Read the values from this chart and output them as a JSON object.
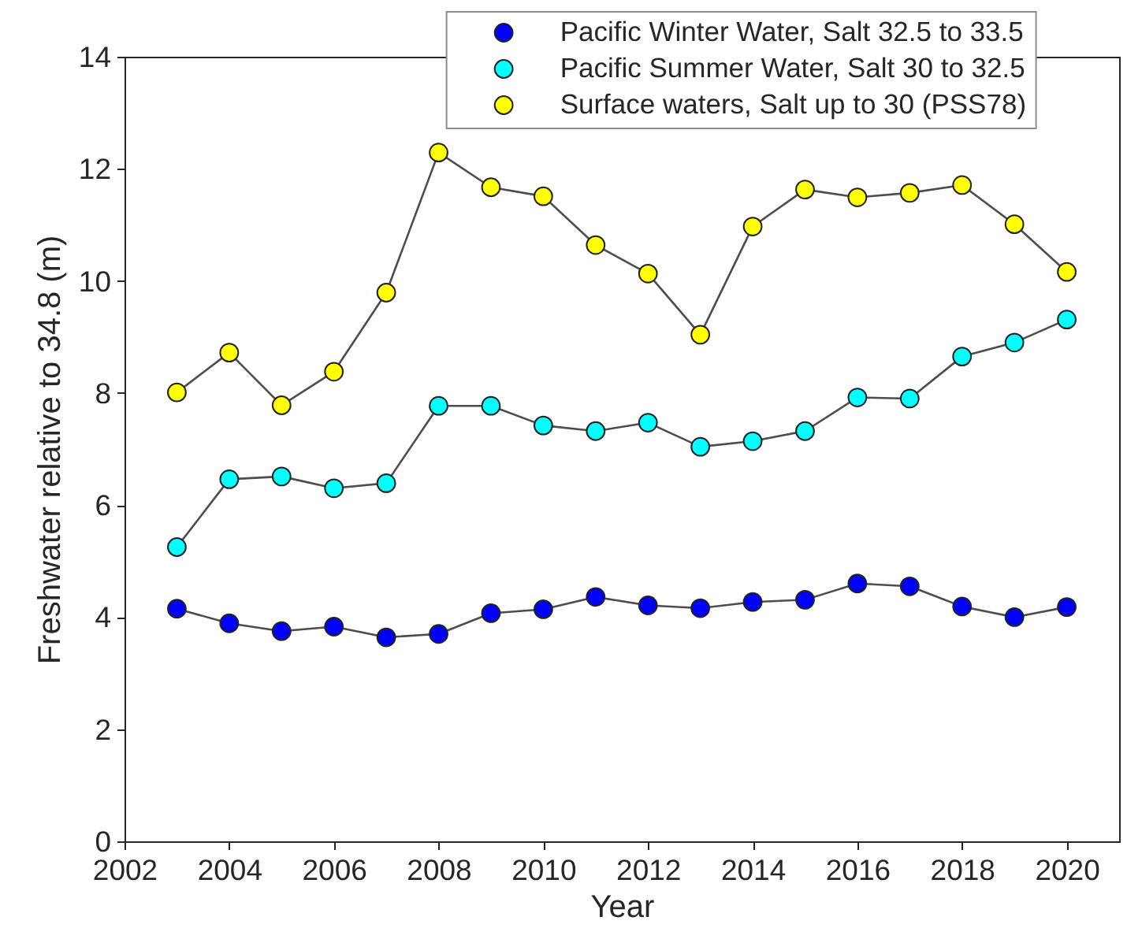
{
  "chart_data": {
    "type": "line",
    "xlabel": "Year",
    "ylabel": "Freshwater relative to 34.8 (m)",
    "x": [
      2003,
      2004,
      2005,
      2006,
      2007,
      2008,
      2009,
      2010,
      2011,
      2012,
      2013,
      2014,
      2015,
      2016,
      2017,
      2018,
      2019,
      2020
    ],
    "series": [
      {
        "name": "Pacific Winter Water, Salt 32.5 to 33.5",
        "color": "#0000ff",
        "values": [
          4.15,
          3.89,
          3.75,
          3.83,
          3.64,
          3.7,
          4.07,
          4.14,
          4.36,
          4.21,
          4.16,
          4.27,
          4.31,
          4.6,
          4.55,
          4.19,
          4.0,
          4.18
        ]
      },
      {
        "name": "Pacific Summer Water, Salt 30 to 32.5",
        "color": "#00ffff",
        "values": [
          5.25,
          6.46,
          6.51,
          6.3,
          6.39,
          7.77,
          7.77,
          7.42,
          7.32,
          7.47,
          7.04,
          7.14,
          7.32,
          7.92,
          7.9,
          8.65,
          8.9,
          9.31
        ]
      },
      {
        "name": "Surface waters, Salt up to 30 (PSS78)",
        "color": "#ffff00",
        "values": [
          8.01,
          8.72,
          7.78,
          8.38,
          9.79,
          12.29,
          11.67,
          11.51,
          10.64,
          10.13,
          9.04,
          10.97,
          11.63,
          11.49,
          11.57,
          11.71,
          11.01,
          10.16
        ]
      }
    ],
    "xlim": [
      2002,
      2021
    ],
    "xticks": [
      2002,
      2004,
      2006,
      2008,
      2010,
      2012,
      2014,
      2016,
      2018,
      2020
    ],
    "ylim": [
      0,
      14
    ],
    "yticks": [
      0,
      2,
      4,
      6,
      8,
      10,
      12,
      14
    ],
    "grid": false,
    "legend": "top right",
    "marker": "circle",
    "line_style": "solid"
  }
}
